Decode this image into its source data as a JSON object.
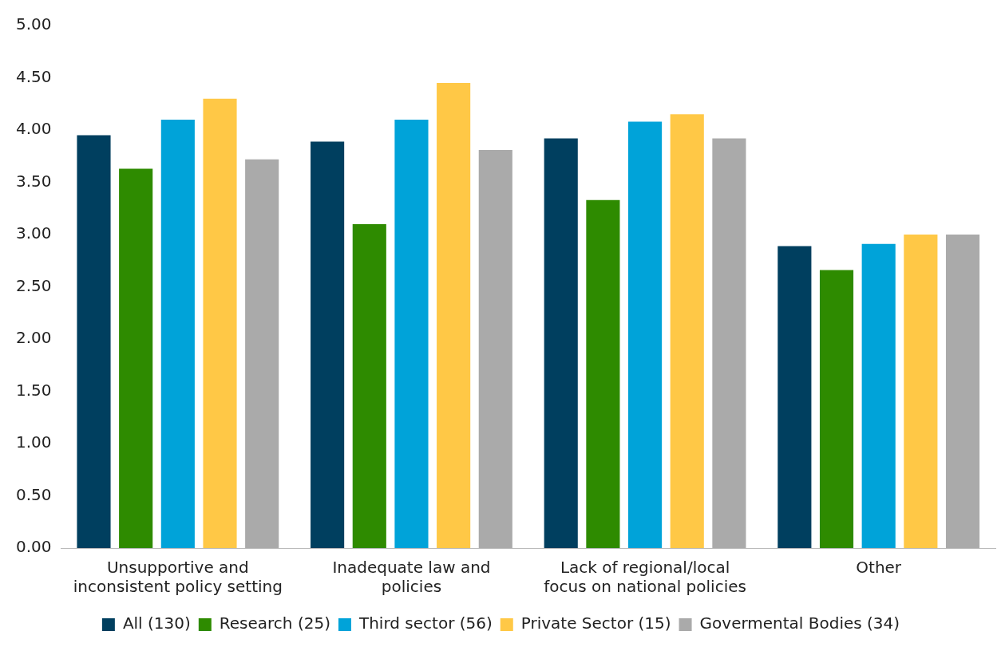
{
  "chart_data": {
    "type": "bar",
    "categories": [
      "Unsupportive and\ninconsistent policy setting",
      "Inadequate law and\npolicies",
      "Lack of regional/local\nfocus on national policies",
      "Other"
    ],
    "series": [
      {
        "name": "All (130)",
        "color": "#003f5f",
        "values": [
          3.95,
          3.89,
          3.92,
          2.89
        ]
      },
      {
        "name": "Research (25)",
        "color": "#2e8b00",
        "values": [
          3.63,
          3.1,
          3.33,
          2.66
        ]
      },
      {
        "name": "Third sector (56)",
        "color": "#00a3d9",
        "values": [
          4.1,
          4.1,
          4.08,
          2.91
        ]
      },
      {
        "name": "Private Sector (15)",
        "color": "#ffc846",
        "values": [
          4.3,
          4.45,
          4.15,
          3.0
        ]
      },
      {
        "name": "Govermental Bodies (34)",
        "color": "#aaaaaa",
        "values": [
          3.72,
          3.81,
          3.92,
          3.0
        ]
      }
    ],
    "ylim": [
      0,
      5
    ],
    "yticks": [
      {
        "value": 0,
        "label": "0.00"
      },
      {
        "value": 0.5,
        "label": "0.50"
      },
      {
        "value": 1,
        "label": "1.00"
      },
      {
        "value": 1.5,
        "label": "1.50"
      },
      {
        "value": 2,
        "label": "2.00"
      },
      {
        "value": 2.5,
        "label": "2.50"
      },
      {
        "value": 3,
        "label": "3.00"
      },
      {
        "value": 3.5,
        "label": "3.50"
      },
      {
        "value": 4,
        "label": "4.00"
      },
      {
        "value": 4.5,
        "label": "4.50"
      },
      {
        "value": 5,
        "label": "5.00"
      }
    ],
    "grid": false,
    "legend": "bottom"
  }
}
